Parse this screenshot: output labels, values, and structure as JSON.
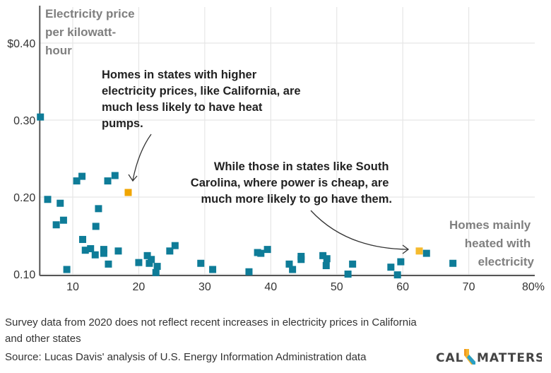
{
  "chart_data": {
    "type": "scatter",
    "title": "",
    "ylabel": "Electricity price per kilowatt-hour",
    "ylabel_lines": [
      "Electricity price",
      "per kilowatt-",
      "hour"
    ],
    "xlabel": "Homes mainly heated with electricity",
    "xlabel_lines": [
      "Homes mainly",
      "heated with",
      "electricity"
    ],
    "xlim": [
      5,
      80
    ],
    "ylim": [
      0.1,
      0.44
    ],
    "grid": true,
    "x_ticks": [
      10,
      20,
      30,
      40,
      50,
      60,
      70,
      80
    ],
    "x_tick_labels": [
      "10",
      "20",
      "30",
      "40",
      "50",
      "60",
      "70",
      "80%"
    ],
    "y_ticks": [
      0.1,
      0.2,
      0.3,
      0.4
    ],
    "y_tick_labels": [
      "0.10",
      "0.20",
      "0.30",
      "$0.40"
    ],
    "colors": {
      "default": "#0e7c98",
      "california": "#f0a500",
      "south_carolina": "#f5ba2e"
    },
    "points": [
      {
        "x": 5.1,
        "y": 0.304
      },
      {
        "x": 6.2,
        "y": 0.197
      },
      {
        "x": 8.1,
        "y": 0.192
      },
      {
        "x": 7.5,
        "y": 0.164
      },
      {
        "x": 8.6,
        "y": 0.17
      },
      {
        "x": 9.1,
        "y": 0.106
      },
      {
        "x": 10.6,
        "y": 0.221
      },
      {
        "x": 11.4,
        "y": 0.227
      },
      {
        "x": 11.5,
        "y": 0.145
      },
      {
        "x": 11.9,
        "y": 0.131
      },
      {
        "x": 12.7,
        "y": 0.133
      },
      {
        "x": 13.4,
        "y": 0.125
      },
      {
        "x": 13.5,
        "y": 0.162
      },
      {
        "x": 13.9,
        "y": 0.185
      },
      {
        "x": 14.7,
        "y": 0.132
      },
      {
        "x": 14.7,
        "y": 0.127
      },
      {
        "x": 15.3,
        "y": 0.221
      },
      {
        "x": 15.4,
        "y": 0.113
      },
      {
        "x": 16.4,
        "y": 0.228
      },
      {
        "x": 16.9,
        "y": 0.13
      },
      {
        "x": 18.4,
        "y": 0.206,
        "highlight": "california"
      },
      {
        "x": 20.0,
        "y": 0.115
      },
      {
        "x": 21.3,
        "y": 0.124
      },
      {
        "x": 21.6,
        "y": 0.114
      },
      {
        "x": 21.9,
        "y": 0.119
      },
      {
        "x": 22.8,
        "y": 0.11
      },
      {
        "x": 22.6,
        "y": 0.102
      },
      {
        "x": 24.7,
        "y": 0.13
      },
      {
        "x": 25.5,
        "y": 0.137
      },
      {
        "x": 29.4,
        "y": 0.114
      },
      {
        "x": 31.2,
        "y": 0.106
      },
      {
        "x": 36.7,
        "y": 0.103
      },
      {
        "x": 38.0,
        "y": 0.128
      },
      {
        "x": 38.5,
        "y": 0.127
      },
      {
        "x": 39.5,
        "y": 0.132
      },
      {
        "x": 42.8,
        "y": 0.113
      },
      {
        "x": 43.3,
        "y": 0.106
      },
      {
        "x": 44.6,
        "y": 0.123
      },
      {
        "x": 44.6,
        "y": 0.119
      },
      {
        "x": 47.9,
        "y": 0.124
      },
      {
        "x": 48.5,
        "y": 0.12
      },
      {
        "x": 48.4,
        "y": 0.111
      },
      {
        "x": 51.7,
        "y": 0.1
      },
      {
        "x": 52.4,
        "y": 0.113
      },
      {
        "x": 58.2,
        "y": 0.109
      },
      {
        "x": 59.2,
        "y": 0.099
      },
      {
        "x": 59.7,
        "y": 0.116
      },
      {
        "x": 62.5,
        "y": 0.13,
        "highlight": "south_carolina"
      },
      {
        "x": 63.6,
        "y": 0.127
      },
      {
        "x": 67.6,
        "y": 0.114
      }
    ],
    "annotations": [
      {
        "lines": [
          "Homes in states with higher",
          "electricity prices, like California, are",
          "much less likely to have heat",
          "pumps."
        ],
        "points_to": "california"
      },
      {
        "lines": [
          "While those in states like South",
          "Carolina, where power is cheap, are",
          "much more likely to go have them."
        ],
        "points_to": "south_carolina"
      }
    ]
  },
  "footer": {
    "note": "Survey data from 2020 does not reflect recent increases in electricity prices in California and other states",
    "source": "Source: Lucas Davis' analysis of U.S. Energy Information Administration data",
    "logo_left": "CAL",
    "logo_right": "MATTERS"
  }
}
